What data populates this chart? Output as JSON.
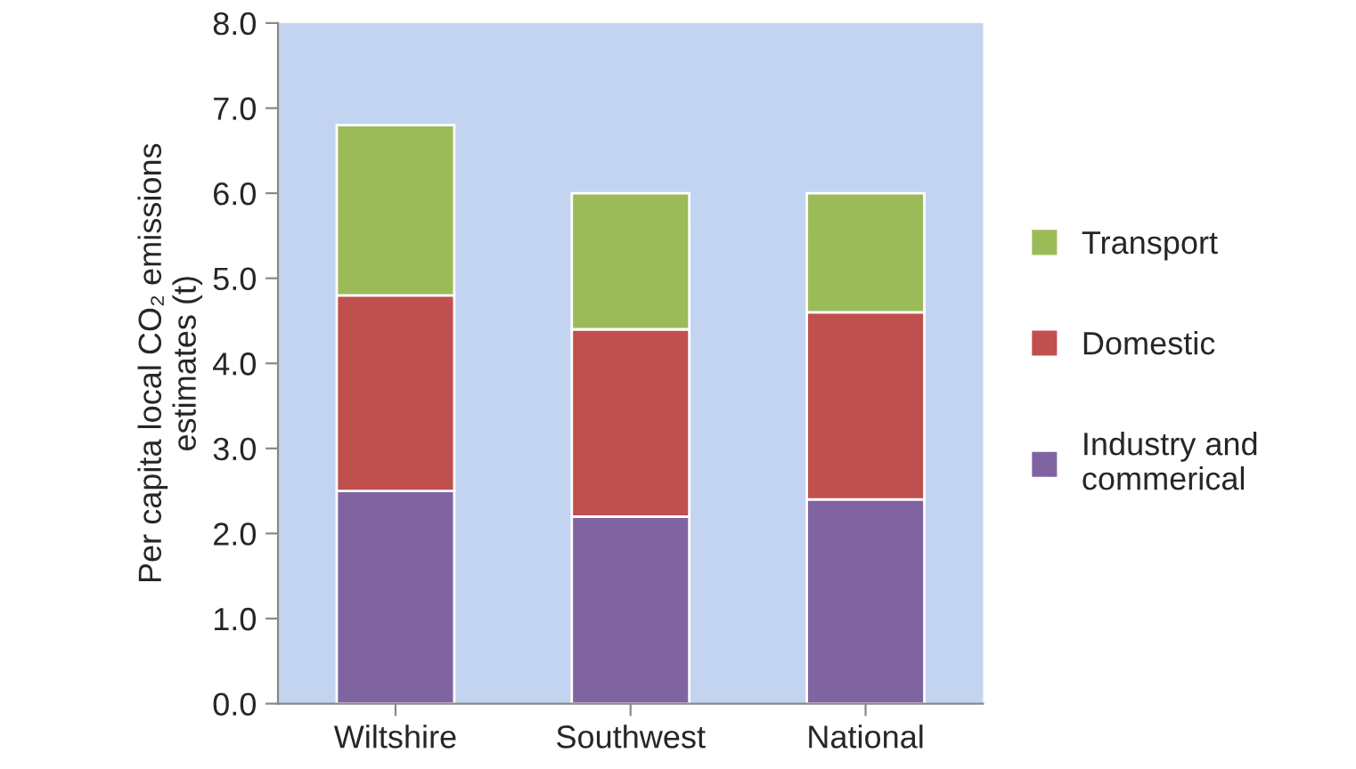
{
  "chart_data": {
    "type": "bar",
    "stacked": true,
    "categories": [
      "Wiltshire",
      "Southwest",
      "National"
    ],
    "ylabel": "Per capita local CO₂ emissions\nestimates (t)",
    "ylim": [
      0,
      8
    ],
    "yticks": [
      {
        "value": 0,
        "label": "0.0"
      },
      {
        "value": 1,
        "label": "1.0"
      },
      {
        "value": 2,
        "label": "2.0"
      },
      {
        "value": 3,
        "label": "3.0"
      },
      {
        "value": 4,
        "label": "4.0"
      },
      {
        "value": 5,
        "label": "5.0"
      },
      {
        "value": 6,
        "label": "6.0"
      },
      {
        "value": 7,
        "label": "7.0"
      },
      {
        "value": 8,
        "label": "8.0"
      }
    ],
    "legend": "right",
    "series": [
      {
        "name": "Industry and\ncommerical",
        "color": "#8064a2",
        "values": [
          2.5,
          2.2,
          2.4
        ]
      },
      {
        "name": "Domestic",
        "color": "#c0504d",
        "values": [
          2.3,
          2.2,
          2.2
        ]
      },
      {
        "name": "Transport",
        "color": "#9bbb59",
        "values": [
          2.0,
          1.6,
          1.4
        ]
      }
    ]
  }
}
